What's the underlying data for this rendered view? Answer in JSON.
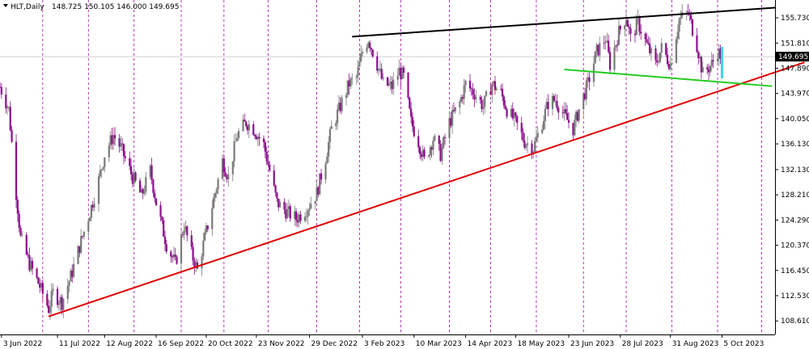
{
  "header": {
    "symbol_label": "HLT,Daily",
    "ohlc_label": "148.725 150.105 146.000 149.695"
  },
  "chart_data": {
    "type": "candlestick",
    "symbol": "HLT",
    "timeframe": "Daily",
    "ohlc": {
      "open": 148.725,
      "high": 150.105,
      "low": 146.0,
      "close": 149.695
    },
    "ylim": [
      106.5,
      158.5
    ],
    "y_ticks": [
      108.61,
      112.53,
      116.45,
      120.37,
      124.29,
      128.21,
      132.13,
      136.13,
      140.05,
      143.97,
      147.89,
      151.81,
      155.73
    ],
    "y_tick_labels": [
      "108.610",
      "112.530",
      "116.450",
      "120.370",
      "124.290",
      "128.210",
      "132.130",
      "136.130",
      "140.050",
      "143.970",
      "147.890",
      "151.810",
      "155.730"
    ],
    "x_range": [
      "2022-06-02",
      "2023-11-10"
    ],
    "x_ticks": [
      {
        "date": "2022-06-03",
        "label": "3 Jun 2022"
      },
      {
        "date": "2022-07-11",
        "label": "11 Jul 2022"
      },
      {
        "date": "2022-08-12",
        "label": "12 Aug 2022"
      },
      {
        "date": "2022-09-16",
        "label": "16 Sep 2022"
      },
      {
        "date": "2022-10-20",
        "label": "20 Oct 2022"
      },
      {
        "date": "2022-11-23",
        "label": "23 Nov 2022"
      },
      {
        "date": "2022-12-29",
        "label": "29 Dec 2022"
      },
      {
        "date": "2023-02-03",
        "label": "3 Feb 2023"
      },
      {
        "date": "2023-03-10",
        "label": "10 Mar 2023"
      },
      {
        "date": "2023-04-14",
        "label": "14 Apr 2023"
      },
      {
        "date": "2023-05-18",
        "label": "18 May 2023"
      },
      {
        "date": "2023-06-23",
        "label": "23 Jun 2023"
      },
      {
        "date": "2023-07-28",
        "label": "28 Jul 2023"
      },
      {
        "date": "2023-08-31",
        "label": "31 Aug 2023"
      },
      {
        "date": "2023-10-05",
        "label": "5 Oct 2023"
      }
    ],
    "period_separators": [
      "2022-06-01",
      "2022-07-01",
      "2022-08-01",
      "2022-09-01",
      "2022-10-03",
      "2022-11-01",
      "2022-12-01",
      "2023-01-03",
      "2023-02-01",
      "2023-03-01",
      "2023-04-03",
      "2023-05-01",
      "2023-06-01",
      "2023-07-03",
      "2023-08-01",
      "2023-09-01",
      "2023-10-02",
      "2023-11-01"
    ],
    "price_path": [
      [
        "2022-06-02",
        145.0
      ],
      [
        "2022-06-08",
        141.5
      ],
      [
        "2022-06-13",
        128.5
      ],
      [
        "2022-06-16",
        121.5
      ],
      [
        "2022-06-22",
        117.5
      ],
      [
        "2022-06-29",
        114.0
      ],
      [
        "2022-07-05",
        110.5
      ],
      [
        "2022-07-08",
        113.0
      ],
      [
        "2022-07-14",
        111.5
      ],
      [
        "2022-07-20",
        115.5
      ],
      [
        "2022-07-27",
        121.0
      ],
      [
        "2022-08-02",
        125.5
      ],
      [
        "2022-08-08",
        130.5
      ],
      [
        "2022-08-12",
        134.5
      ],
      [
        "2022-08-18",
        137.5
      ],
      [
        "2022-08-23",
        135.5
      ],
      [
        "2022-08-30",
        131.5
      ],
      [
        "2022-09-06",
        128.0
      ],
      [
        "2022-09-12",
        132.0
      ],
      [
        "2022-09-16",
        127.0
      ],
      [
        "2022-09-23",
        120.5
      ],
      [
        "2022-09-29",
        117.5
      ],
      [
        "2022-10-05",
        123.5
      ],
      [
        "2022-10-10",
        119.0
      ],
      [
        "2022-10-14",
        116.5
      ],
      [
        "2022-10-20",
        122.5
      ],
      [
        "2022-10-26",
        128.5
      ],
      [
        "2022-10-31",
        133.5
      ],
      [
        "2022-11-04",
        131.0
      ],
      [
        "2022-11-10",
        137.5
      ],
      [
        "2022-11-16",
        139.5
      ],
      [
        "2022-11-21",
        138.5
      ],
      [
        "2022-11-28",
        136.0
      ],
      [
        "2022-12-02",
        132.0
      ],
      [
        "2022-12-07",
        127.0
      ],
      [
        "2022-12-14",
        125.5
      ],
      [
        "2022-12-20",
        124.5
      ],
      [
        "2022-12-27",
        126.0
      ],
      [
        "2023-01-03",
        128.5
      ],
      [
        "2023-01-09",
        134.0
      ],
      [
        "2023-01-13",
        138.5
      ],
      [
        "2023-01-19",
        142.0
      ],
      [
        "2023-01-25",
        145.5
      ],
      [
        "2023-01-30",
        146.5
      ],
      [
        "2023-02-03",
        150.5
      ],
      [
        "2023-02-07",
        152.5
      ],
      [
        "2023-02-13",
        148.5
      ],
      [
        "2023-02-17",
        145.5
      ],
      [
        "2023-02-23",
        145.0
      ],
      [
        "2023-02-28",
        147.5
      ],
      [
        "2023-03-03",
        146.5
      ],
      [
        "2023-03-08",
        139.5
      ],
      [
        "2023-03-13",
        136.5
      ],
      [
        "2023-03-17",
        133.5
      ],
      [
        "2023-03-23",
        137.0
      ],
      [
        "2023-03-28",
        134.5
      ],
      [
        "2023-04-03",
        139.5
      ],
      [
        "2023-04-10",
        142.5
      ],
      [
        "2023-04-14",
        145.5
      ],
      [
        "2023-04-20",
        144.0
      ],
      [
        "2023-04-26",
        142.0
      ],
      [
        "2023-05-02",
        145.5
      ],
      [
        "2023-05-08",
        144.0
      ],
      [
        "2023-05-12",
        141.5
      ],
      [
        "2023-05-18",
        139.5
      ],
      [
        "2023-05-24",
        136.5
      ],
      [
        "2023-05-30",
        135.5
      ],
      [
        "2023-06-05",
        139.5
      ],
      [
        "2023-06-09",
        142.5
      ],
      [
        "2023-06-14",
        143.0
      ],
      [
        "2023-06-20",
        140.5
      ],
      [
        "2023-06-26",
        138.5
      ],
      [
        "2023-06-30",
        141.5
      ],
      [
        "2023-07-06",
        145.5
      ],
      [
        "2023-07-12",
        150.5
      ],
      [
        "2023-07-18",
        152.5
      ],
      [
        "2023-07-21",
        148.5
      ],
      [
        "2023-07-27",
        153.5
      ],
      [
        "2023-08-01",
        156.0
      ],
      [
        "2023-08-04",
        152.5
      ],
      [
        "2023-08-09",
        155.0
      ],
      [
        "2023-08-15",
        151.5
      ],
      [
        "2023-08-21",
        148.5
      ],
      [
        "2023-08-25",
        151.0
      ],
      [
        "2023-08-31",
        148.5
      ],
      [
        "2023-09-06",
        155.5
      ],
      [
        "2023-09-12",
        156.5
      ],
      [
        "2023-09-18",
        151.5
      ],
      [
        "2023-09-22",
        147.0
      ],
      [
        "2023-09-28",
        148.5
      ],
      [
        "2023-10-02",
        150.5
      ],
      [
        "2023-10-05",
        149.7
      ]
    ],
    "trendlines": [
      {
        "color": "#000000",
        "from": [
          "2023-01-27",
          152.8
        ],
        "to": [
          "2023-11-10",
          157.3
        ]
      },
      {
        "color": "#e00000",
        "from": [
          "2022-07-05",
          109.3
        ],
        "to": [
          "2023-11-30",
          148.8
        ]
      },
      {
        "color": "#22cc22",
        "from": [
          "2023-06-20",
          147.7
        ],
        "to": [
          "2023-11-08",
          145.1
        ]
      }
    ],
    "horizontal_line": 149.695,
    "marker": {
      "color": "#3ad6e8",
      "date": "2023-10-05",
      "from": 151.2,
      "to": 146.3
    },
    "last_price_label": "149.695"
  }
}
